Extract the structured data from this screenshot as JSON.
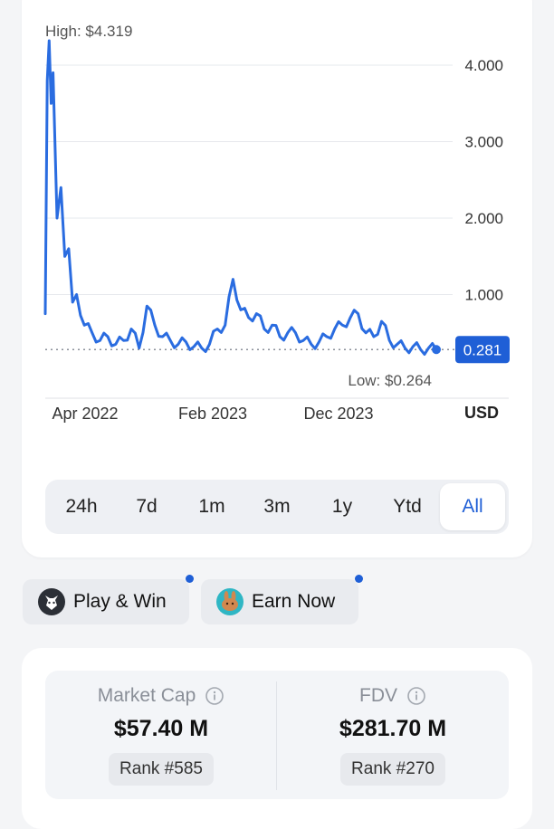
{
  "chart_data": {
    "type": "line",
    "currency": "USD",
    "high_label": "High: $4.319",
    "low_label": "Low: $0.264",
    "current_value": "0.281",
    "y_ticks": [
      "4.000",
      "3.000",
      "2.000",
      "1.000"
    ],
    "y_tick_values": [
      4,
      3,
      2,
      1
    ],
    "x_labels": [
      "Apr 2022",
      "Feb 2023",
      "Dec 2023"
    ],
    "ylim": [
      0,
      4.319
    ],
    "grid": true,
    "series": [
      {
        "x": [
          0,
          0.5,
          1,
          1.5,
          2,
          3,
          4,
          5,
          6,
          7,
          8,
          10,
          12,
          14,
          16,
          18,
          20,
          22,
          24,
          26,
          28,
          30,
          32,
          34,
          36,
          38,
          40,
          42,
          44,
          46,
          48,
          50,
          52,
          54,
          56,
          58,
          60,
          62,
          64,
          66,
          68,
          70,
          72,
          74,
          76,
          78,
          80,
          82,
          84,
          86,
          88,
          90,
          92,
          94,
          96,
          98,
          100
        ],
        "y": [
          0.75,
          3.8,
          4.319,
          3.5,
          3.9,
          2.0,
          2.4,
          1.5,
          1.6,
          0.9,
          1.0,
          0.6,
          0.5,
          0.4,
          0.45,
          0.35,
          0.4,
          0.55,
          0.3,
          0.85,
          0.6,
          0.45,
          0.4,
          0.35,
          0.38,
          0.32,
          0.3,
          0.35,
          0.55,
          0.6,
          1.2,
          0.8,
          0.7,
          0.75,
          0.55,
          0.6,
          0.45,
          0.5,
          0.5,
          0.4,
          0.35,
          0.38,
          0.45,
          0.55,
          0.6,
          0.7,
          0.75,
          0.5,
          0.45,
          0.65,
          0.4,
          0.35,
          0.3,
          0.32,
          0.28,
          0.3,
          0.281
        ]
      }
    ]
  },
  "tabs": {
    "items": [
      "24h",
      "7d",
      "1m",
      "3m",
      "1y",
      "Ytd",
      "All"
    ],
    "active": "All"
  },
  "actions": {
    "play_label": "Play & Win",
    "earn_label": "Earn Now"
  },
  "stats": {
    "market_cap_label": "Market Cap",
    "market_cap_value": "$57.40 M",
    "market_cap_rank": "Rank #585",
    "fdv_label": "FDV",
    "fdv_value": "$281.70 M",
    "fdv_rank": "Rank #270"
  },
  "colors": {
    "accent": "#1f5fd6",
    "line": "#2a6ce0"
  }
}
